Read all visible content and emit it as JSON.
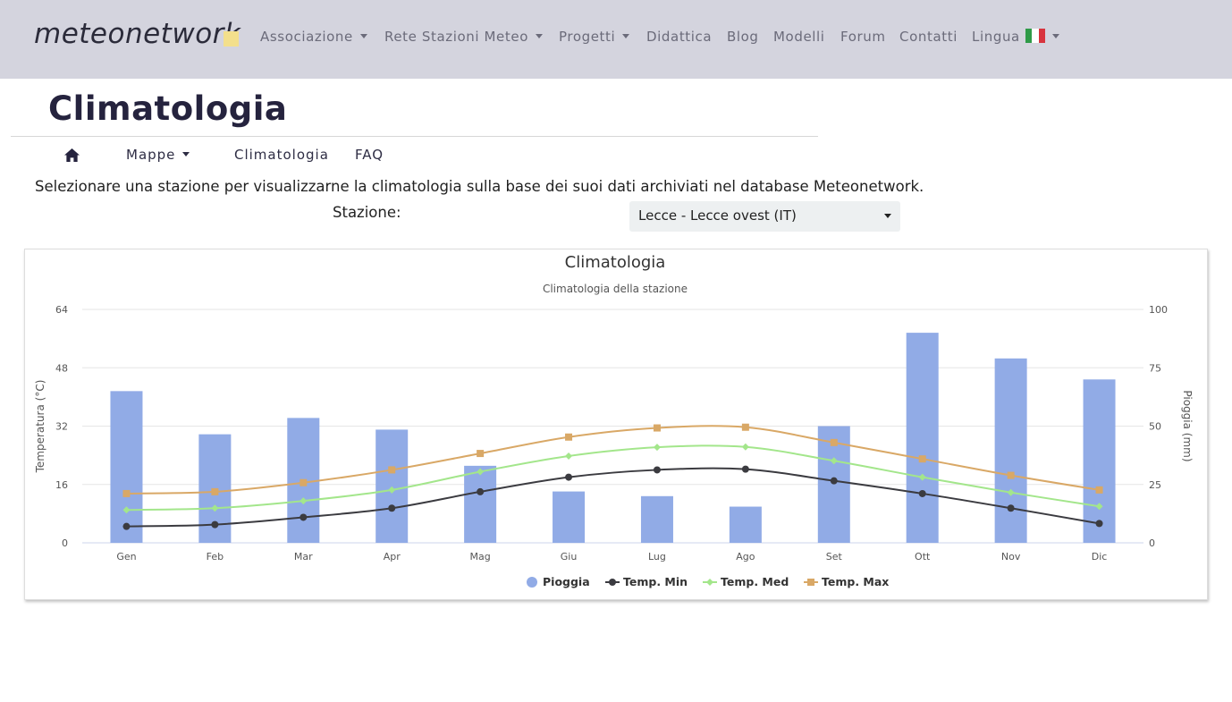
{
  "brand": {
    "name": "meteonetwork"
  },
  "nav": {
    "items": [
      {
        "label": "Associazione",
        "dropdown": true
      },
      {
        "label": "Rete Stazioni Meteo",
        "dropdown": true
      },
      {
        "label": "Progetti",
        "dropdown": true
      },
      {
        "label": "Didattica",
        "dropdown": false
      },
      {
        "label": "Blog",
        "dropdown": false
      },
      {
        "label": "Modelli",
        "dropdown": false
      },
      {
        "label": "Forum",
        "dropdown": false
      },
      {
        "label": "Contatti",
        "dropdown": false
      },
      {
        "label": "Lingua",
        "dropdown": true,
        "flag": "italy-flag-icon"
      }
    ]
  },
  "page": {
    "title": "Climatologia"
  },
  "subnav": {
    "home_icon": "home-icon",
    "items": [
      {
        "label": "Mappe",
        "dropdown": true
      },
      {
        "label": "Climatologia",
        "dropdown": false
      },
      {
        "label": "FAQ",
        "dropdown": false
      }
    ]
  },
  "intro": {
    "text": "Selezionare una stazione per visualizzarne la climatologia sulla base dei suoi dati archiviati nel database Meteonetwork."
  },
  "station": {
    "label": "Stazione:",
    "selected": "Lecce - Lecce ovest (IT)"
  },
  "colors": {
    "navbar_bg": "#d4d4de",
    "brand_square": "#f3df8c",
    "rain": "#91abe6",
    "temp_min": "#3b3b40",
    "temp_med": "#a3e68b",
    "temp_max": "#d9a866",
    "flag": [
      "#2f9a48",
      "#ffffff",
      "#d8343e"
    ]
  },
  "chart_data": {
    "type": "bar",
    "title": "Climatologia",
    "subtitle": "Climatologia della stazione",
    "categories": [
      "Gen",
      "Feb",
      "Mar",
      "Apr",
      "Mag",
      "Giu",
      "Lug",
      "Ago",
      "Set",
      "Ott",
      "Nov",
      "Dic"
    ],
    "y_left": {
      "label": "Temperatura (°C)",
      "range": [
        0,
        64
      ],
      "ticks": [
        0,
        16,
        32,
        48,
        64
      ]
    },
    "y_right": {
      "label": "Pioggia (mm)",
      "range": [
        0,
        100
      ],
      "ticks": [
        0,
        25,
        50,
        75,
        100
      ]
    },
    "grid": true,
    "legend_position": "bottom-center",
    "series": [
      {
        "name": "Pioggia",
        "type": "bar",
        "axis": "right",
        "values": [
          65,
          46.5,
          53.5,
          48.5,
          33,
          22,
          20,
          15.5,
          50,
          90,
          79,
          70
        ]
      },
      {
        "name": "Temp. Min",
        "type": "line",
        "axis": "left",
        "marker": "circle",
        "values": [
          4.5,
          5,
          7,
          9.5,
          14,
          18,
          20,
          20.2,
          17,
          13.5,
          9.5,
          5.3
        ]
      },
      {
        "name": "Temp. Med",
        "type": "line",
        "axis": "left",
        "marker": "diamond",
        "values": [
          9,
          9.5,
          11.5,
          14.5,
          19.5,
          23.8,
          26.2,
          26.3,
          22.5,
          18,
          13.8,
          10
        ]
      },
      {
        "name": "Temp. Max",
        "type": "line",
        "axis": "left",
        "marker": "square",
        "values": [
          13.5,
          14,
          16.5,
          20,
          24.5,
          29,
          31.5,
          31.7,
          27.5,
          23,
          18.5,
          14.5
        ]
      }
    ]
  }
}
